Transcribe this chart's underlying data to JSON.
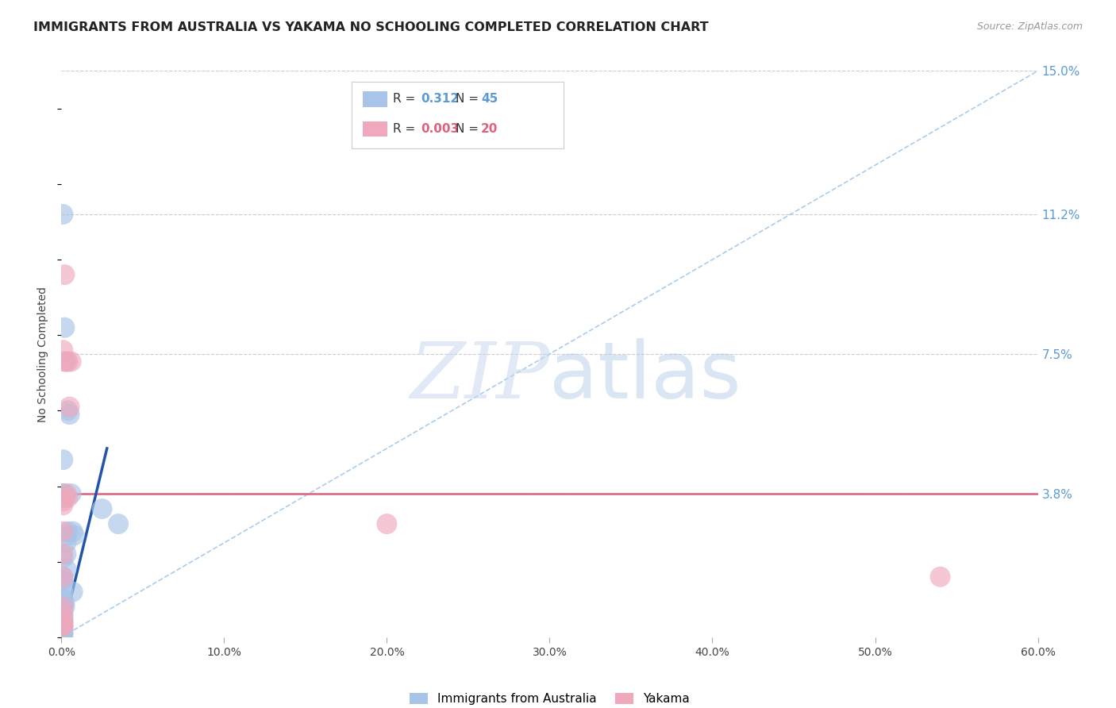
{
  "title": "IMMIGRANTS FROM AUSTRALIA VS YAKAMA NO SCHOOLING COMPLETED CORRELATION CHART",
  "source": "Source: ZipAtlas.com",
  "ylabel": "No Schooling Completed",
  "xlim": [
    0.0,
    0.6
  ],
  "ylim": [
    0.0,
    0.15
  ],
  "xtick_labels": [
    "0.0%",
    "10.0%",
    "20.0%",
    "30.0%",
    "40.0%",
    "50.0%",
    "60.0%"
  ],
  "xtick_vals": [
    0.0,
    0.1,
    0.2,
    0.3,
    0.4,
    0.5,
    0.6
  ],
  "ytick_labels": [
    "15.0%",
    "11.2%",
    "7.5%",
    "3.8%"
  ],
  "ytick_vals": [
    0.15,
    0.112,
    0.075,
    0.038
  ],
  "grid_color": "#cccccc",
  "background_color": "#ffffff",
  "legend_R1": "0.312",
  "legend_N1": "45",
  "legend_R2": "0.003",
  "legend_N2": "20",
  "legend_label1": "Immigrants from Australia",
  "legend_label2": "Yakama",
  "blue_color": "#a8c4e8",
  "pink_color": "#f0a8bc",
  "blue_line_color": "#2255aa",
  "pink_line_color": "#e06080",
  "dashed_line_color": "#aaccee",
  "watermark_zip": "ZIP",
  "watermark_atlas": "atlas",
  "blue_scatter_x": [
    0.001,
    0.002,
    0.003,
    0.004,
    0.005,
    0.006,
    0.007,
    0.008,
    0.001,
    0.001,
    0.002,
    0.002,
    0.003,
    0.003,
    0.001,
    0.002,
    0.002,
    0.001,
    0.001,
    0.001,
    0.001,
    0.001,
    0.001,
    0.001,
    0.001,
    0.001,
    0.001,
    0.001,
    0.001,
    0.001,
    0.003,
    0.003,
    0.001,
    0.001,
    0.001,
    0.001,
    0.001,
    0.025,
    0.035,
    0.002,
    0.004,
    0.007,
    0.001,
    0.001,
    0.001
  ],
  "blue_scatter_y": [
    0.112,
    0.082,
    0.073,
    0.06,
    0.059,
    0.038,
    0.028,
    0.027,
    0.047,
    0.038,
    0.038,
    0.037,
    0.027,
    0.025,
    0.009,
    0.009,
    0.008,
    0.007,
    0.006,
    0.005,
    0.005,
    0.004,
    0.004,
    0.003,
    0.003,
    0.002,
    0.002,
    0.001,
    0.001,
    0.001,
    0.022,
    0.018,
    0.016,
    0.015,
    0.012,
    0.01,
    0.01,
    0.034,
    0.03,
    0.037,
    0.028,
    0.012,
    0.021,
    0.015,
    0.0
  ],
  "pink_scatter_x": [
    0.001,
    0.002,
    0.002,
    0.004,
    0.005,
    0.006,
    0.003,
    0.004,
    0.001,
    0.001,
    0.001,
    0.001,
    0.001,
    0.001,
    0.001,
    0.001,
    0.001,
    0.001,
    0.2,
    0.54
  ],
  "pink_scatter_y": [
    0.076,
    0.096,
    0.073,
    0.073,
    0.061,
    0.073,
    0.038,
    0.037,
    0.036,
    0.035,
    0.028,
    0.022,
    0.016,
    0.008,
    0.006,
    0.004,
    0.003,
    0.003,
    0.03,
    0.016
  ],
  "blue_trend_x": [
    0.0,
    0.028
  ],
  "blue_trend_y": [
    0.0,
    0.05
  ],
  "pink_trend_y": 0.038,
  "diag_line_x": [
    0.0,
    0.6
  ],
  "diag_line_y": [
    0.0,
    0.15
  ]
}
